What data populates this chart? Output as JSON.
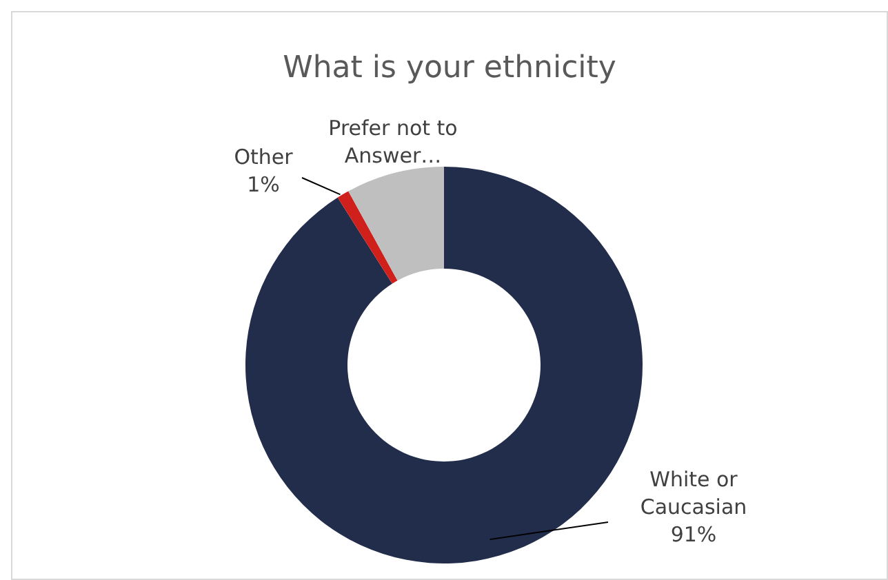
{
  "chart_data": {
    "type": "donut",
    "title": "What is your ethnicity",
    "categories": [
      "White or Caucasian",
      "Other",
      "Prefer not to Answer…"
    ],
    "values": [
      91,
      1,
      8
    ],
    "colors": [
      "#222d4b",
      "#d0201c",
      "#bfbfbf"
    ],
    "value_labels": [
      "91%",
      "1%",
      null
    ]
  }
}
